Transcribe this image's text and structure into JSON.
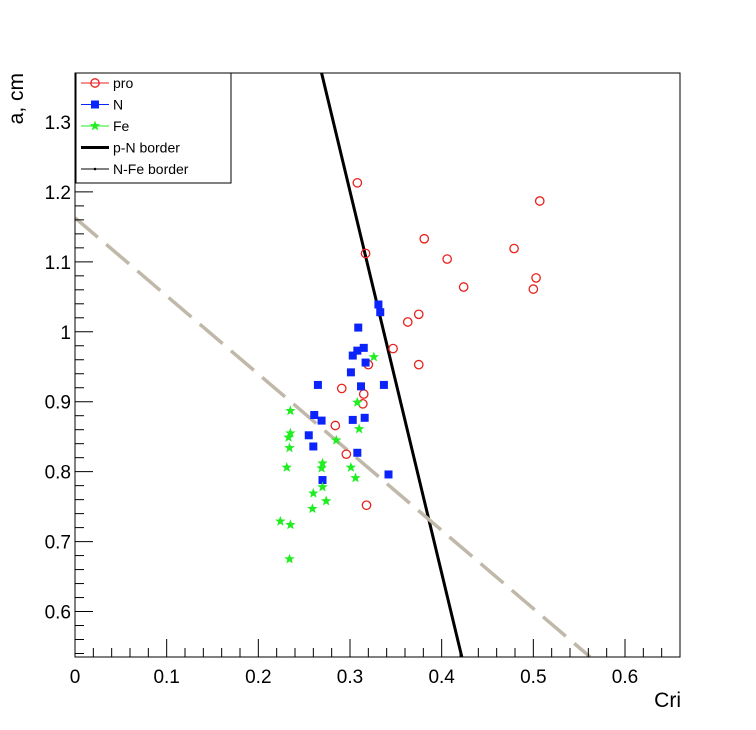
{
  "chart_data": {
    "type": "scatter",
    "xlabel": "Cri",
    "ylabel": "a, cm",
    "xlim": [
      0,
      0.66
    ],
    "ylim": [
      0.535,
      1.37
    ],
    "x_ticks": [
      0,
      0.1,
      0.2,
      0.3,
      0.4,
      0.5,
      0.6
    ],
    "x_tick_labels": [
      "0",
      "0.1",
      "0.2",
      "0.3",
      "0.4",
      "0.5",
      "0.6"
    ],
    "y_ticks": [
      0.6,
      0.7,
      0.8,
      0.9,
      1.0,
      1.1,
      1.2,
      1.3
    ],
    "y_tick_labels": [
      "0.6",
      "0.7",
      "0.8",
      "0.9",
      "1",
      "1.1",
      "1.2",
      "1.3"
    ],
    "legend_position": "top-left",
    "series": [
      {
        "name": "pro",
        "marker": "open-circle",
        "color": "#e8201c",
        "points": [
          [
            0.308,
            1.213
          ],
          [
            0.317,
            1.112
          ],
          [
            0.381,
            1.133
          ],
          [
            0.406,
            1.104
          ],
          [
            0.424,
            1.064
          ],
          [
            0.479,
            1.119
          ],
          [
            0.507,
            1.187
          ],
          [
            0.503,
            1.077
          ],
          [
            0.5,
            1.061
          ],
          [
            0.375,
            1.025
          ],
          [
            0.363,
            1.014
          ],
          [
            0.347,
            0.976
          ],
          [
            0.32,
            0.953
          ],
          [
            0.375,
            0.953
          ],
          [
            0.291,
            0.919
          ],
          [
            0.315,
            0.911
          ],
          [
            0.314,
            0.897
          ],
          [
            0.284,
            0.866
          ],
          [
            0.296,
            0.825
          ],
          [
            0.318,
            0.752
          ]
        ]
      },
      {
        "name": "N",
        "marker": "filled-square",
        "color": "#0b24fb",
        "points": [
          [
            0.331,
            1.039
          ],
          [
            0.333,
            1.028
          ],
          [
            0.309,
            1.006
          ],
          [
            0.315,
            0.977
          ],
          [
            0.308,
            0.973
          ],
          [
            0.303,
            0.966
          ],
          [
            0.317,
            0.956
          ],
          [
            0.301,
            0.942
          ],
          [
            0.265,
            0.924
          ],
          [
            0.312,
            0.922
          ],
          [
            0.337,
            0.924
          ],
          [
            0.261,
            0.881
          ],
          [
            0.269,
            0.873
          ],
          [
            0.303,
            0.874
          ],
          [
            0.316,
            0.877
          ],
          [
            0.255,
            0.852
          ],
          [
            0.26,
            0.836
          ],
          [
            0.308,
            0.827
          ],
          [
            0.342,
            0.796
          ],
          [
            0.27,
            0.788
          ]
        ]
      },
      {
        "name": "Fe",
        "marker": "star",
        "color": "#21ee21",
        "points": [
          [
            0.326,
            0.964
          ],
          [
            0.308,
            0.899
          ],
          [
            0.235,
            0.887
          ],
          [
            0.235,
            0.855
          ],
          [
            0.233,
            0.849
          ],
          [
            0.234,
            0.834
          ],
          [
            0.31,
            0.861
          ],
          [
            0.285,
            0.845
          ],
          [
            0.27,
            0.812
          ],
          [
            0.269,
            0.805
          ],
          [
            0.231,
            0.806
          ],
          [
            0.301,
            0.806
          ],
          [
            0.306,
            0.791
          ],
          [
            0.27,
            0.778
          ],
          [
            0.26,
            0.769
          ],
          [
            0.274,
            0.758
          ],
          [
            0.259,
            0.747
          ],
          [
            0.224,
            0.729
          ],
          [
            0.235,
            0.724
          ],
          [
            0.234,
            0.675
          ]
        ]
      }
    ],
    "lines": [
      {
        "name": "p-N border",
        "color": "#000000",
        "style": "solid",
        "points": [
          [
            0.269,
            1.37
          ],
          [
            0.422,
            0.535
          ]
        ]
      },
      {
        "name": "N-Fe border",
        "color": "#c0b8a8",
        "style": "dashed",
        "points": [
          [
            0.0,
            1.163
          ],
          [
            0.562,
            0.535
          ]
        ]
      }
    ]
  }
}
